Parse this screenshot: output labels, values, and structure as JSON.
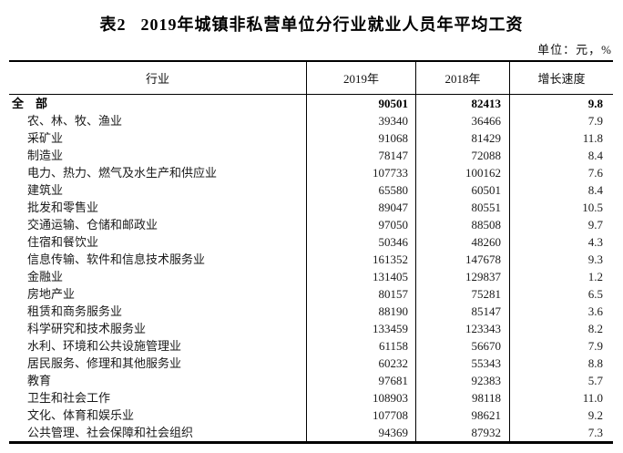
{
  "title": {
    "label": "表2",
    "text": "2019年城镇非私营单位分行业就业人员年平均工资"
  },
  "unit_label": "单位：元，%",
  "table": {
    "columns": [
      "行业",
      "2019年",
      "2018年",
      "增长速度"
    ],
    "rows": [
      {
        "industry": "全　部",
        "y2019": "90501",
        "y2018": "82413",
        "growth": "9.8",
        "bold": true
      },
      {
        "industry": "农、林、牧、渔业",
        "y2019": "39340",
        "y2018": "36466",
        "growth": "7.9",
        "bold": false
      },
      {
        "industry": "采矿业",
        "y2019": "91068",
        "y2018": "81429",
        "growth": "11.8",
        "bold": false
      },
      {
        "industry": "制造业",
        "y2019": "78147",
        "y2018": "72088",
        "growth": "8.4",
        "bold": false
      },
      {
        "industry": "电力、热力、燃气及水生产和供应业",
        "y2019": "107733",
        "y2018": "100162",
        "growth": "7.6",
        "bold": false
      },
      {
        "industry": "建筑业",
        "y2019": "65580",
        "y2018": "60501",
        "growth": "8.4",
        "bold": false
      },
      {
        "industry": "批发和零售业",
        "y2019": "89047",
        "y2018": "80551",
        "growth": "10.5",
        "bold": false
      },
      {
        "industry": "交通运输、仓储和邮政业",
        "y2019": "97050",
        "y2018": "88508",
        "growth": "9.7",
        "bold": false
      },
      {
        "industry": "住宿和餐饮业",
        "y2019": "50346",
        "y2018": "48260",
        "growth": "4.3",
        "bold": false
      },
      {
        "industry": "信息传输、软件和信息技术服务业",
        "y2019": "161352",
        "y2018": "147678",
        "growth": "9.3",
        "bold": false
      },
      {
        "industry": "金融业",
        "y2019": "131405",
        "y2018": "129837",
        "growth": "1.2",
        "bold": false
      },
      {
        "industry": "房地产业",
        "y2019": "80157",
        "y2018": "75281",
        "growth": "6.5",
        "bold": false
      },
      {
        "industry": "租赁和商务服务业",
        "y2019": "88190",
        "y2018": "85147",
        "growth": "3.6",
        "bold": false
      },
      {
        "industry": "科学研究和技术服务业",
        "y2019": "133459",
        "y2018": "123343",
        "growth": "8.2",
        "bold": false
      },
      {
        "industry": "水利、环境和公共设施管理业",
        "y2019": "61158",
        "y2018": "56670",
        "growth": "7.9",
        "bold": false
      },
      {
        "industry": "居民服务、修理和其他服务业",
        "y2019": "60232",
        "y2018": "55343",
        "growth": "8.8",
        "bold": false
      },
      {
        "industry": "教育",
        "y2019": "97681",
        "y2018": "92383",
        "growth": "5.7",
        "bold": false
      },
      {
        "industry": "卫生和社会工作",
        "y2019": "108903",
        "y2018": "98118",
        "growth": "11.0",
        "bold": false
      },
      {
        "industry": "文化、体育和娱乐业",
        "y2019": "107708",
        "y2018": "98621",
        "growth": "9.2",
        "bold": false
      },
      {
        "industry": "公共管理、社会保障和社会组织",
        "y2019": "94369",
        "y2018": "87932",
        "growth": "7.3",
        "bold": false
      }
    ]
  }
}
